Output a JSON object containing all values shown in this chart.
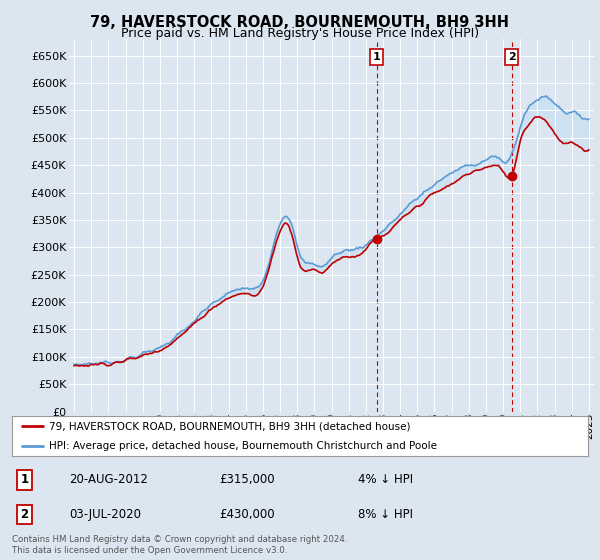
{
  "title": "79, HAVERSTOCK ROAD, BOURNEMOUTH, BH9 3HH",
  "subtitle": "Price paid vs. HM Land Registry's House Price Index (HPI)",
  "legend_line1": "79, HAVERSTOCK ROAD, BOURNEMOUTH, BH9 3HH (detached house)",
  "legend_line2": "HPI: Average price, detached house, Bournemouth Christchurch and Poole",
  "transaction1_date": "20-AUG-2012",
  "transaction1_price": "£315,000",
  "transaction1_pct": "4% ↓ HPI",
  "transaction2_date": "03-JUL-2020",
  "transaction2_price": "£430,000",
  "transaction2_pct": "8% ↓ HPI",
  "footer": "Contains HM Land Registry data © Crown copyright and database right 2024.\nThis data is licensed under the Open Government Licence v3.0.",
  "ylim": [
    0,
    680000
  ],
  "yticks": [
    0,
    50000,
    100000,
    150000,
    200000,
    250000,
    300000,
    350000,
    400000,
    450000,
    500000,
    550000,
    600000,
    650000
  ],
  "background_color": "#dce6f1",
  "hpi_color": "#5b9bd5",
  "price_color": "#c00000",
  "grid_color": "#ffffff",
  "fill_color": "#c9dff0",
  "sale1_x": 2012.63,
  "sale1_y": 315000,
  "sale2_x": 2020.5,
  "sale2_y": 430000,
  "xlim_left": 1994.7,
  "xlim_right": 2025.3
}
